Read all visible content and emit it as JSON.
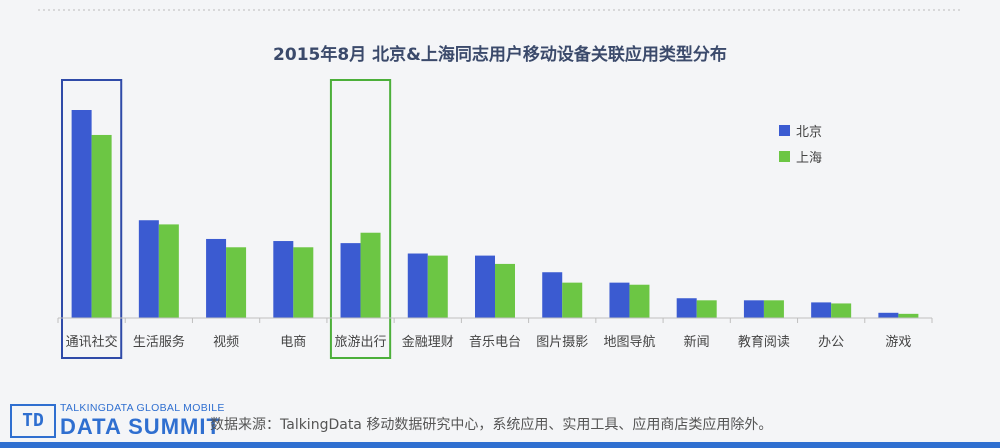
{
  "chart_data": {
    "type": "bar",
    "title": "2015年8月  北京&上海同志用户移动设备关联应用类型分布",
    "categories": [
      "通讯社交",
      "生活服务",
      "视频",
      "电商",
      "旅游出行",
      "金融理财",
      "音乐电台",
      "图片摄影",
      "地图导航",
      "新闻",
      "教育阅读",
      "办公",
      "游戏"
    ],
    "series": [
      {
        "name": "北京",
        "color": "#3b5bd1",
        "values": [
          100,
          47,
          38,
          37,
          36,
          31,
          30,
          22,
          17,
          9.5,
          8.5,
          7.5,
          2.5
        ]
      },
      {
        "name": "上海",
        "color": "#6cc644",
        "values": [
          88,
          45,
          34,
          34,
          41,
          30,
          26,
          17,
          16,
          8.5,
          8.5,
          7,
          2
        ]
      }
    ],
    "ylim": [
      0,
      100
    ],
    "legend_position": "right",
    "highlighted_categories": [
      {
        "category": "通讯社交",
        "color": "#2f4aa8"
      },
      {
        "category": "旅游出行",
        "color": "#4caf3a"
      }
    ],
    "grid": false
  },
  "footer": {
    "logo_top": "TALKINGDATA GLOBAL MOBILE",
    "logo_main": "DATA SUMMIT",
    "logo_mark": "TD",
    "source": "数据来源：TalkingData 移动数据研究中心，系统应用、实用工具、应用商店类应用除外。"
  }
}
